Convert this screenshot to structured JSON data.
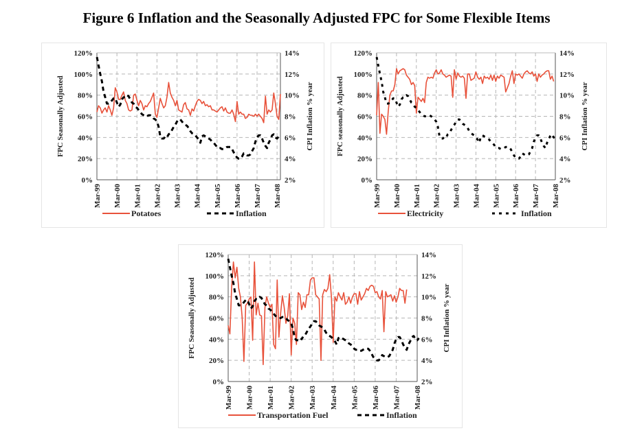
{
  "figure_title": "Figure 6 Inflation and the Seasonally Adjusted FPC for Some Flexible Items",
  "chart_data": [
    {
      "type": "line",
      "id": "potatoes",
      "ylabel": "FPC Seasonally Adjusted",
      "y2label": "CPI Inflation % year",
      "ylim": [
        0,
        120
      ],
      "y2lim": [
        2,
        14
      ],
      "yticks": [
        "0%",
        "20%",
        "40%",
        "60%",
        "80%",
        "100%",
        "120%"
      ],
      "y2ticks": [
        "2%",
        "4%",
        "6%",
        "8%",
        "10%",
        "12%",
        "14%"
      ],
      "xticks": [
        "Mar-99",
        "Mar-00",
        "Mar-01",
        "Mar-02",
        "Mar-03",
        "Mar-04",
        "Mar-05",
        "Mar-06",
        "Mar-07",
        "Mar-08"
      ],
      "grid": true,
      "legend_position": "bottom",
      "series": [
        {
          "name": "Potatoes",
          "axis": "left",
          "color": "#e8513a",
          "style": "solid",
          "values": [
            64,
            70,
            68,
            63,
            66,
            68,
            64,
            70,
            66,
            61,
            68,
            87,
            83,
            76,
            76,
            80,
            83,
            75,
            72,
            66,
            65,
            66,
            80,
            81,
            75,
            70,
            75,
            72,
            66,
            70,
            69,
            72,
            74,
            78,
            82,
            62,
            59,
            68,
            77,
            72,
            68,
            70,
            78,
            92,
            82,
            78,
            75,
            70,
            75,
            66,
            65,
            64,
            71,
            73,
            67,
            66,
            61,
            67,
            65,
            70,
            74,
            76,
            75,
            72,
            74,
            70,
            71,
            69,
            70,
            66,
            66,
            65,
            64,
            66,
            68,
            69,
            65,
            68,
            64,
            63,
            63,
            66,
            62,
            55,
            74,
            62,
            64,
            62,
            62,
            58,
            59,
            62,
            61,
            61,
            60,
            62,
            60,
            62,
            60,
            58,
            54,
            79,
            62,
            66,
            64,
            66,
            82,
            72,
            60,
            57,
            81
          ]
        },
        {
          "name": "Inflation",
          "axis": "right",
          "color": "#000000",
          "style": "dashed",
          "values": [
            13.6,
            12.8,
            12.0,
            11.3,
            10.3,
            9.8,
            9.2,
            9.2,
            9.3,
            9.5,
            9.7,
            9.7,
            9.3,
            8.9,
            9.1,
            9.6,
            9.8,
            9.8,
            10.0,
            9.9,
            9.6,
            9.3,
            9.2,
            8.9,
            8.8,
            8.6,
            8.4,
            8.2,
            8.1,
            8.0,
            8.0,
            8.1,
            8.1,
            8.0,
            7.8,
            7.7,
            7.5,
            7.0,
            6.1,
            5.9,
            5.9,
            6.1,
            6.0,
            6.3,
            6.4,
            6.7,
            7.0,
            7.2,
            7.5,
            7.7,
            7.7,
            7.5,
            7.3,
            7.2,
            7.1,
            6.9,
            6.6,
            6.4,
            6.3,
            6.2,
            6.0,
            5.8,
            5.5,
            6.1,
            6.2,
            6.1,
            6.0,
            5.9,
            5.8,
            5.6,
            5.5,
            5.3,
            5.1,
            5.0,
            5.0,
            4.9,
            4.9,
            5.0,
            5.1,
            5.1,
            5.1,
            4.9,
            4.6,
            4.3,
            4.1,
            4.0,
            4.0,
            4.2,
            4.5,
            4.4,
            4.3,
            4.3,
            4.4,
            4.7,
            5.0,
            5.6,
            6.0,
            6.2,
            6.2,
            5.9,
            5.5,
            5.2,
            5.0,
            5.5,
            5.8,
            6.2,
            6.3,
            6.0,
            5.9,
            6.1
          ]
        }
      ]
    },
    {
      "type": "line",
      "id": "electricity",
      "ylabel": "FPC seasonally Adjusted",
      "y2label": "CPI Inflation % year",
      "ylim": [
        0,
        120
      ],
      "y2lim": [
        2,
        14
      ],
      "yticks": [
        "0%",
        "20%",
        "40%",
        "60%",
        "80%",
        "100%",
        "120%"
      ],
      "y2ticks": [
        "2%",
        "4%",
        "6%",
        "8%",
        "10%",
        "12%",
        "14%"
      ],
      "xticks": [
        "Mar-99",
        "Mar-00",
        "Mar-01",
        "Mar-02",
        "Mar-03",
        "Mar-04",
        "Mar-05",
        "Mar-06",
        "Mar-07",
        "Mar-08"
      ],
      "grid": true,
      "legend_position": "bottom",
      "series": [
        {
          "name": "Electricity",
          "axis": "left",
          "color": "#e8513a",
          "style": "solid",
          "values": [
            61,
            92,
            44,
            62,
            60,
            57,
            43,
            65,
            80,
            84,
            84,
            90,
            105,
            100,
            103,
            104,
            105,
            104,
            99,
            97,
            95,
            90,
            92,
            89,
            63,
            78,
            76,
            74,
            77,
            73,
            92,
            97,
            96,
            97,
            96,
            101,
            104,
            100,
            101,
            104,
            100,
            99,
            97,
            98,
            99,
            98,
            78,
            104,
            95,
            101,
            98,
            97,
            98,
            96,
            77,
            100,
            100,
            94,
            95,
            96,
            102,
            97,
            95,
            97,
            91,
            98,
            96,
            97,
            95,
            99,
            94,
            99,
            93,
            98,
            96,
            99,
            98,
            97,
            83,
            87,
            91,
            98,
            103,
            91,
            100,
            99,
            100,
            98,
            96,
            100,
            102,
            103,
            101,
            100,
            102,
            98,
            100,
            93,
            100,
            97,
            99,
            100,
            102,
            103,
            103,
            95,
            98,
            93
          ]
        },
        {
          "name": "Inflation",
          "axis": "right",
          "color": "#000000",
          "style": "dotted",
          "values": [
            13.6,
            12.8,
            12.0,
            11.3,
            10.3,
            9.8,
            9.2,
            9.2,
            9.3,
            9.5,
            9.7,
            9.7,
            9.3,
            8.9,
            9.1,
            9.6,
            9.8,
            9.8,
            10.0,
            9.9,
            9.6,
            9.3,
            9.2,
            8.9,
            8.8,
            8.6,
            8.4,
            8.2,
            8.1,
            8.0,
            8.0,
            8.1,
            8.1,
            8.0,
            7.8,
            7.7,
            7.5,
            7.0,
            6.1,
            5.9,
            5.9,
            6.1,
            6.0,
            6.3,
            6.4,
            6.7,
            7.0,
            7.2,
            7.5,
            7.7,
            7.7,
            7.5,
            7.3,
            7.2,
            7.1,
            6.9,
            6.6,
            6.4,
            6.3,
            6.2,
            6.0,
            5.8,
            5.5,
            6.1,
            6.2,
            6.1,
            6.0,
            5.9,
            5.8,
            5.6,
            5.5,
            5.3,
            5.1,
            5.0,
            5.0,
            4.9,
            4.9,
            5.0,
            5.1,
            5.1,
            5.1,
            4.9,
            4.6,
            4.3,
            4.1,
            4.0,
            4.0,
            4.2,
            4.5,
            4.4,
            4.3,
            4.3,
            4.4,
            4.7,
            5.0,
            5.6,
            6.0,
            6.2,
            6.2,
            5.9,
            5.5,
            5.2,
            5.0,
            5.5,
            5.8,
            6.2,
            6.3,
            6.0,
            5.9,
            6.1
          ]
        }
      ]
    },
    {
      "type": "line",
      "id": "transportation-fuel",
      "ylabel": "FPC Seasonally Adjusted",
      "y2label": "CPI Inflation % year",
      "ylim": [
        0,
        120
      ],
      "y2lim": [
        2,
        14
      ],
      "yticks": [
        "0%",
        "20%",
        "40%",
        "60%",
        "80%",
        "100%",
        "120%"
      ],
      "y2ticks": [
        "2%",
        "4%",
        "6%",
        "8%",
        "10%",
        "12%",
        "14%"
      ],
      "xticks": [
        "Mar-99",
        "Mar-00",
        "Mar-01",
        "Mar-02",
        "Mar-03",
        "Mar-04",
        "Mar-05",
        "Mar-06",
        "Mar-07",
        "Mar-08"
      ],
      "grid": true,
      "legend_position": "bottom",
      "series": [
        {
          "name": "Transportation Fuel",
          "axis": "left",
          "color": "#e8513a",
          "style": "solid",
          "values": [
            53,
            45,
            90,
            113,
            98,
            108,
            88,
            80,
            60,
            19,
            72,
            74,
            78,
            80,
            39,
            113,
            63,
            74,
            63,
            62,
            16,
            70,
            80,
            74,
            70,
            73,
            35,
            31,
            96,
            42,
            65,
            81,
            70,
            55,
            62,
            83,
            25,
            60,
            55,
            35,
            84,
            82,
            68,
            75,
            70,
            82,
            82,
            96,
            98,
            98,
            82,
            80,
            78,
            20,
            82,
            87,
            85,
            88,
            101,
            80,
            37,
            80,
            76,
            84,
            80,
            77,
            84,
            73,
            75,
            80,
            74,
            80,
            83,
            83,
            73,
            85,
            77,
            80,
            83,
            88,
            86,
            90,
            91,
            90,
            84,
            85,
            80,
            78,
            86,
            47,
            85,
            80,
            81,
            82,
            76,
            81,
            75,
            80,
            88,
            86,
            86,
            74,
            87
          ]
        },
        {
          "name": "Inflation",
          "axis": "right",
          "color": "#000000",
          "style": "dashed",
          "values": [
            13.6,
            12.8,
            12.0,
            11.3,
            10.3,
            9.8,
            9.2,
            9.2,
            9.3,
            9.5,
            9.7,
            9.7,
            9.3,
            8.9,
            9.1,
            9.6,
            9.8,
            9.8,
            10.0,
            9.9,
            9.6,
            9.3,
            9.2,
            8.9,
            8.8,
            8.6,
            8.4,
            8.2,
            8.1,
            8.0,
            8.0,
            8.1,
            8.1,
            8.0,
            7.8,
            7.7,
            7.5,
            7.0,
            6.1,
            5.9,
            5.9,
            6.1,
            6.0,
            6.3,
            6.4,
            6.7,
            7.0,
            7.2,
            7.5,
            7.7,
            7.7,
            7.5,
            7.3,
            7.2,
            7.1,
            6.9,
            6.6,
            6.4,
            6.3,
            6.2,
            6.0,
            5.8,
            5.5,
            6.1,
            6.2,
            6.1,
            6.0,
            5.9,
            5.8,
            5.6,
            5.5,
            5.3,
            5.1,
            5.0,
            5.0,
            4.9,
            4.9,
            5.0,
            5.1,
            5.1,
            5.1,
            4.9,
            4.6,
            4.3,
            4.1,
            4.0,
            4.0,
            4.2,
            4.5,
            4.4,
            4.3,
            4.3,
            4.4,
            4.7,
            5.0,
            5.6,
            6.0,
            6.2,
            6.2,
            5.9,
            5.5,
            5.2,
            5.0,
            5.5,
            5.8,
            6.2,
            6.3,
            6.0,
            5.9,
            6.1
          ]
        }
      ]
    }
  ]
}
